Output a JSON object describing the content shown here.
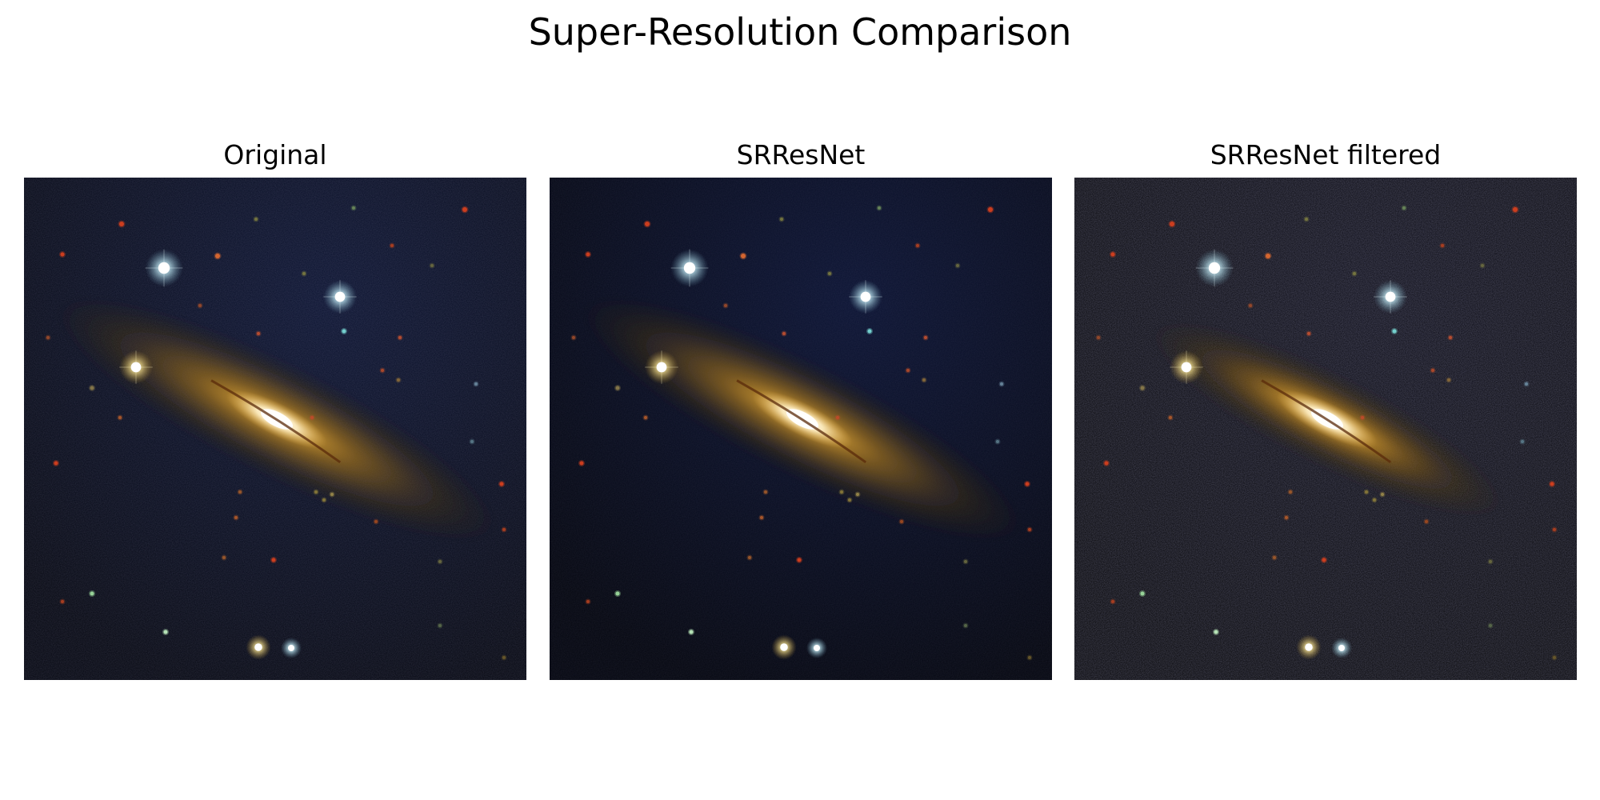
{
  "figure": {
    "title": "Super-Resolution Comparison"
  },
  "panels": [
    {
      "title": "Original",
      "variant": "original"
    },
    {
      "title": "SRResNet",
      "variant": "srresnet"
    },
    {
      "title": "SRResNet filtered",
      "variant": "filtered"
    }
  ],
  "colors": {
    "background": "#ffffff",
    "sky": "#05081a",
    "galaxy_core": "#fff6dc",
    "galaxy_halo": "#c89a2c",
    "dust_lane": "#5a2a0a",
    "star_white": "#e8fbff",
    "star_red": "#d8401e"
  }
}
